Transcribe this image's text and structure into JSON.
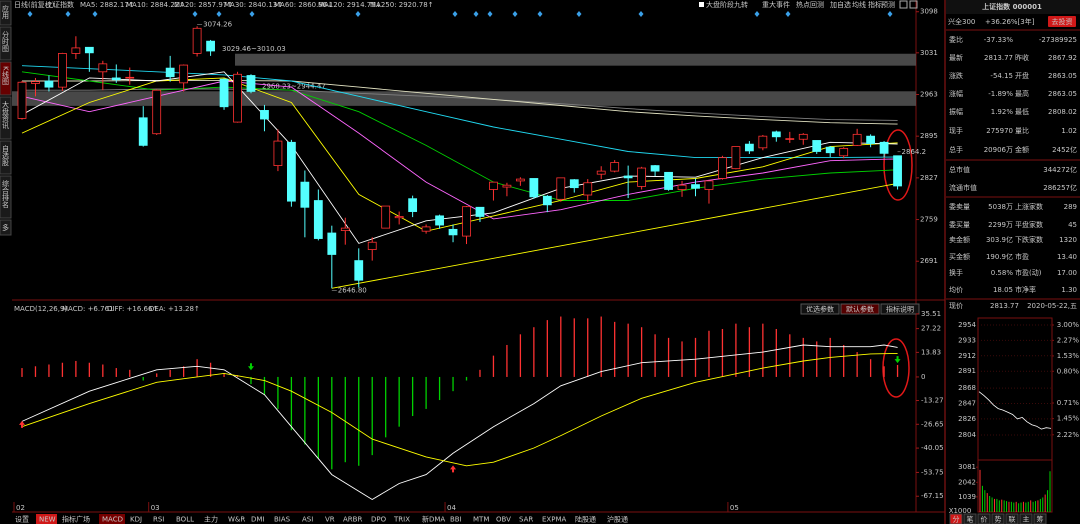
{
  "left_tabs": [
    {
      "label": "应用"
    },
    {
      "label": "分时图"
    },
    {
      "label": "K线图",
      "style": "active"
    },
    {
      "label": "大盘资讯"
    },
    {
      "label": "自选股"
    },
    {
      "label": "综合排名"
    },
    {
      "label": "多"
    }
  ],
  "toolbar": {
    "period": "日线(前复权)",
    "name": "上证指数",
    "ma_legend": [
      "MA5: 2882.17↑",
      "MA10: 2884.22↑",
      "MA20: 2857.97↑",
      "MA30: 2840.13↑",
      "MA60: 2860.96↓",
      "MA120: 2914.75↓",
      "MA250: 2920.78↑"
    ],
    "right_items": [
      "大盘阶段九转",
      "重大事件",
      "热点回测",
      "加自选",
      "均线",
      "指标",
      "预测"
    ]
  },
  "kline": {
    "ylim": [
      2631,
      3109
    ],
    "yticks": [
      3098,
      3031,
      2963,
      2895,
      2827,
      2759,
      2691
    ],
    "candles": {
      "open": [
        2924,
        2981,
        2985,
        2975,
        3030,
        3040,
        3000,
        2990,
        2990,
        2925,
        2899,
        3006,
        2982,
        3030,
        3050,
        2988,
        2918,
        2994,
        2937,
        2847,
        2885,
        2820,
        2790,
        2737,
        2741,
        2692,
        2710,
        2745,
        2762,
        2793,
        2740,
        2765,
        2743,
        2732,
        2779,
        2808,
        2812,
        2822,
        2826,
        2797,
        2792,
        2824,
        2799,
        2833,
        2838,
        2830,
        2813,
        2847,
        2836,
        2808,
        2816,
        2808,
        2826,
        2842,
        2882,
        2876,
        2902,
        2891,
        2890,
        2888,
        2877,
        2863,
        2880,
        2895,
        2885,
        2863.05
      ],
      "high": [
        2985,
        2990,
        2994,
        3031,
        3058,
        3040,
        3018,
        3012,
        3007,
        2944,
        2971,
        3026,
        3012,
        3074.26,
        3052,
        2989,
        3000,
        2996,
        2946,
        2906,
        2889,
        2839,
        2808,
        2749,
        2762,
        2712,
        2730,
        2781,
        2772,
        2798,
        2751,
        2767,
        2751,
        2781,
        2779,
        2820,
        2819,
        2828,
        2826,
        2799,
        2827,
        2825,
        2825,
        2846,
        2856,
        2847,
        2845,
        2848,
        2836,
        2822,
        2826,
        2822,
        2863,
        2878,
        2887,
        2897,
        2904,
        2902,
        2900,
        2888,
        2879,
        2877,
        2907,
        2898,
        2887,
        2863.05
      ],
      "low": [
        2922,
        2960,
        2968,
        2969,
        3021,
        3000,
        2970,
        2982,
        2979,
        2878,
        2897,
        2984,
        2968,
        3025,
        3026,
        2938,
        2917,
        2965,
        2903,
        2838,
        2780,
        2730,
        2725,
        2646.8,
        2718,
        2648,
        2692,
        2745,
        2751,
        2763,
        2736,
        2744,
        2722,
        2719,
        2755,
        2790,
        2797,
        2814,
        2793,
        2771,
        2788,
        2803,
        2788,
        2825,
        2836,
        2794,
        2808,
        2830,
        2806,
        2796,
        2797,
        2785,
        2824,
        2841,
        2866,
        2872,
        2886,
        2884,
        2881,
        2866,
        2861,
        2859,
        2879,
        2877,
        2861,
        2808.02
      ],
      "close": [
        2983,
        2984,
        2975,
        3030,
        3039,
        3031,
        3013,
        2987,
        2991,
        2880,
        2970,
        2992,
        3011,
        3071,
        3034,
        2943,
        2996,
        2968,
        2923,
        2887,
        2789,
        2779,
        2728,
        2702,
        2745,
        2660,
        2722,
        2781,
        2764,
        2772,
        2747,
        2750,
        2734,
        2780,
        2764,
        2820,
        2815,
        2825,
        2796,
        2783,
        2827,
        2811,
        2819,
        2838,
        2852,
        2827,
        2843,
        2838,
        2808,
        2815,
        2810,
        2822,
        2860,
        2878,
        2871,
        2895,
        2894,
        2891,
        2898,
        2870,
        2868,
        2875,
        2898,
        2883,
        2867,
        2813.77
      ]
    },
    "ma": {
      "x": [
        0,
        5,
        10,
        15,
        20,
        25,
        30,
        35,
        40,
        45,
        50,
        55,
        60,
        65
      ],
      "series": [
        {
          "name": "MA5",
          "color": "#ffffff",
          "values": [
            2930,
            2990,
            2985,
            3000,
            2880,
            2720,
            2757,
            2770,
            2810,
            2830,
            2828,
            2860,
            2885,
            2882.17
          ]
        },
        {
          "name": "MA10",
          "color": "#ffff00",
          "values": [
            2900,
            2950,
            2985,
            2990,
            2950,
            2800,
            2740,
            2765,
            2790,
            2820,
            2826,
            2845,
            2878,
            2884.22
          ]
        },
        {
          "name": "MA20",
          "color": "#ff66ff",
          "values": [
            2960,
            2935,
            2960,
            2985,
            2975,
            2900,
            2820,
            2760,
            2775,
            2800,
            2820,
            2835,
            2855,
            2857.97
          ]
        },
        {
          "name": "MA30",
          "color": "#00d000",
          "values": [
            3000,
            2985,
            2970,
            2975,
            2970,
            2935,
            2880,
            2820,
            2790,
            2790,
            2810,
            2825,
            2835,
            2840.13
          ]
        },
        {
          "name": "MA60",
          "color": "#20d8f0",
          "values": [
            3010,
            3005,
            3000,
            2995,
            2985,
            2960,
            2935,
            2910,
            2890,
            2870,
            2860,
            2860,
            2860,
            2860.96
          ]
        },
        {
          "name": "MA120",
          "color": "#e0e0c0",
          "values": [
            2985,
            2985,
            2986,
            2986,
            2985,
            2975,
            2965,
            2955,
            2945,
            2935,
            2928,
            2922,
            2917,
            2914.75
          ]
        },
        {
          "name": "MA250",
          "color": "#808080",
          "values": [
            2970,
            2970,
            2972,
            2972,
            2970,
            2965,
            2960,
            2955,
            2948,
            2940,
            2933,
            2927,
            2922,
            2920.78
          ]
        }
      ]
    },
    "gaps": [
      {
        "from": 3029.46,
        "to": 3010.03,
        "label": "3029.46~3010.03"
      },
      {
        "from": 2968.23,
        "to": 2944.47,
        "label": "2968.23~2944.47"
      }
    ],
    "annotations": [
      "3074.26",
      "2646.80",
      "2864.2"
    ],
    "trendline": {
      "x": [
        23,
        65
      ],
      "values": [
        2646.8,
        2818
      ]
    },
    "x_labels": {
      "labels": [
        "02",
        "03",
        "04",
        "05"
      ],
      "at": [
        0,
        10,
        32,
        53
      ]
    }
  },
  "macd": {
    "title": "MACD(12,26,9)",
    "macd_label": "MACD: +6.761",
    "diff_label": "DIFF: +16.66↑",
    "dea_label": "DEA: +13.28↑",
    "buttons": [
      {
        "label": "优选参数"
      },
      {
        "label": "默认参数",
        "style": "active"
      },
      {
        "label": "指标说明"
      }
    ],
    "ylim": [
      -74.9,
      40.5
    ],
    "yticks": [
      35.51,
      27.22,
      13.83,
      0,
      -13.27,
      -26.65,
      -40.05,
      -53.75,
      -67.15
    ],
    "bars": [
      5,
      6,
      7,
      8,
      9,
      8,
      7,
      5,
      4,
      -2,
      2,
      4,
      6,
      10,
      8,
      2,
      1,
      -4,
      -10,
      -18,
      -30,
      -38,
      -46,
      -52,
      -48,
      -50,
      -44,
      -34,
      -28,
      -22,
      -18,
      -13,
      -8,
      -2,
      4,
      12,
      18,
      24,
      28,
      32,
      34,
      33,
      33,
      34,
      31,
      30,
      28,
      24,
      22,
      20,
      22,
      26,
      27,
      30,
      28,
      30,
      27,
      24,
      22,
      20,
      22,
      18,
      14,
      10,
      6,
      6.761
    ],
    "diff": {
      "color": "#ffffff",
      "x": [
        0,
        5,
        10,
        13,
        15,
        18,
        20,
        23,
        26,
        28,
        30,
        32,
        35,
        38,
        40,
        43,
        46,
        50,
        55,
        58,
        60,
        63,
        64,
        65
      ],
      "values": [
        -25,
        -8,
        4,
        6,
        4,
        -10,
        -28,
        -55,
        -69,
        -60,
        -55,
        -43,
        -28,
        -15,
        -5,
        3,
        8,
        10,
        14,
        18,
        17,
        17,
        18,
        16.66
      ]
    },
    "dea": {
      "color": "#ffff00",
      "x": [
        0,
        5,
        10,
        13,
        15,
        18,
        20,
        23,
        26,
        30,
        33,
        35,
        38,
        40,
        43,
        46,
        50,
        55,
        58,
        60,
        63,
        65
      ],
      "values": [
        -28,
        -15,
        -3,
        0,
        2,
        -2,
        -8,
        -20,
        -35,
        -45,
        -50,
        -48,
        -40,
        -33,
        -22,
        -12,
        -3,
        5,
        9,
        11,
        13,
        13.28
      ]
    }
  },
  "bottom_tabs": [
    {
      "label": "设置"
    },
    {
      "label": "NEW",
      "style": "badge"
    },
    {
      "label": "指标广场"
    },
    {
      "label": "MACD",
      "style": "active"
    },
    {
      "label": "KDJ"
    },
    {
      "label": "RSI"
    },
    {
      "label": "BOLL"
    },
    {
      "label": "主力"
    },
    {
      "label": "W&R"
    },
    {
      "label": "DMI"
    },
    {
      "label": "BIAS"
    },
    {
      "label": "ASI"
    },
    {
      "label": "VR"
    },
    {
      "label": "ARBR"
    },
    {
      "label": "DPO"
    },
    {
      "label": "TRIX"
    },
    {
      "label": "新DMA"
    },
    {
      "label": "BBI"
    },
    {
      "label": "MTM"
    },
    {
      "label": "OBV"
    },
    {
      "label": "SAR"
    },
    {
      "label": "EXPMA"
    },
    {
      "label": "陆股通"
    },
    {
      "label": "沪股通"
    }
  ],
  "quote": {
    "title": "上证指数 000001",
    "fund": {
      "name": "兴全300",
      "return": "+36.26%[3年]",
      "button": "去投资"
    },
    "rows": [
      {
        "cells": [
          "委比",
          "-37.33%",
          "-27389925"
        ],
        "tones": [
          "label",
          "down",
          "down"
        ]
      },
      {
        "cells": [
          "最新",
          "2813.77",
          "昨收",
          "2867.92"
        ],
        "tones": [
          "label",
          "down",
          "label",
          "flat"
        ]
      },
      {
        "cells": [
          "涨跌",
          "-54.15",
          "开盘",
          "2863.05"
        ],
        "tones": [
          "label",
          "down",
          "label",
          "down"
        ]
      },
      {
        "cells": [
          "涨幅",
          "-1.89%",
          "最高",
          "2863.05"
        ],
        "tones": [
          "label",
          "down",
          "label",
          "down"
        ]
      },
      {
        "cells": [
          "振幅",
          "1.92%",
          "最低",
          "2808.02"
        ],
        "tones": [
          "label",
          "flat",
          "label",
          "down"
        ]
      },
      {
        "cells": [
          "现手",
          "275970",
          "量比",
          "1.02"
        ],
        "tones": [
          "label",
          "vol",
          "label",
          "up"
        ]
      },
      {
        "cells": [
          "总手",
          "20906万",
          "金额",
          "2452亿"
        ],
        "tones": [
          "label",
          "vol",
          "label",
          "vol"
        ]
      },
      {
        "cells": [
          "总市值",
          "344272亿"
        ],
        "tones": [
          "label",
          "vol"
        ]
      },
      {
        "cells": [
          "流通市值",
          "286257亿"
        ],
        "tones": [
          "label",
          "vol"
        ]
      },
      {
        "cells": [
          "委卖量",
          "5038万",
          "上涨家数",
          "289"
        ],
        "tones": [
          "label",
          "vol",
          "label",
          "up"
        ]
      },
      {
        "cells": [
          "委买量",
          "2299万",
          "平盘家数",
          "45"
        ],
        "tones": [
          "label",
          "vol",
          "label",
          "flat"
        ]
      },
      {
        "cells": [
          "卖金额",
          "303.9亿",
          "下跌家数",
          "1320"
        ],
        "tones": [
          "label",
          "vol",
          "label",
          "down"
        ]
      },
      {
        "cells": [
          "买金额",
          "190.9亿",
          "市盈",
          "13.40"
        ],
        "tones": [
          "label",
          "vol",
          "label",
          "flat"
        ]
      },
      {
        "cells": [
          "换手",
          "0.58%",
          "市盈(动)",
          "17.00"
        ],
        "tones": [
          "label",
          "vol",
          "label",
          "flat"
        ]
      },
      {
        "cells": [
          "均价",
          "18.05",
          "市净率",
          "1.30"
        ],
        "tones": [
          "label",
          "vol",
          "label",
          "flat"
        ]
      }
    ],
    "current": {
      "label": "现价",
      "price": "2813.77",
      "date": "2020-05-22,五"
    }
  },
  "intraday": {
    "ylim": [
      2804,
      2954
    ],
    "yticks": [
      2954,
      2933,
      2912,
      2891,
      2868,
      2847,
      2826,
      2804
    ],
    "y2lim": [
      -2.23,
      3.0
    ],
    "y2ticks": [
      {
        "value": 3.0,
        "label": "3.00%"
      },
      {
        "value": 2.27,
        "label": "2.27%"
      },
      {
        "value": 1.53,
        "label": "1.53%"
      },
      {
        "value": 0.8,
        "label": "0.80%"
      },
      {
        "value": -0.71,
        "label": "0.71%"
      },
      {
        "value": -1.45,
        "label": "1.45%"
      },
      {
        "value": -2.22,
        "label": "2.22%"
      }
    ],
    "price": [
      2863,
      2858,
      2852,
      2845,
      2840,
      2838,
      2835,
      2832,
      2826,
      2828,
      2822,
      2818,
      2816,
      2812,
      2814,
      2813
    ],
    "volume_ylim": [
      0,
      3300
    ],
    "volume_ticks": [
      3081,
      2042,
      1039
    ],
    "volume_unit": "X1000",
    "volume": [
      2900,
      1800,
      1500,
      1300,
      1100,
      1000,
      900,
      900,
      800,
      850,
      800,
      750,
      700,
      700,
      650,
      700,
      600,
      650,
      700,
      650,
      700,
      800,
      700,
      750,
      800,
      900,
      1000,
      1200,
      1500,
      2800
    ],
    "tabs": [
      "分",
      "笔",
      "价",
      "势",
      "联",
      "主",
      "筹"
    ]
  }
}
